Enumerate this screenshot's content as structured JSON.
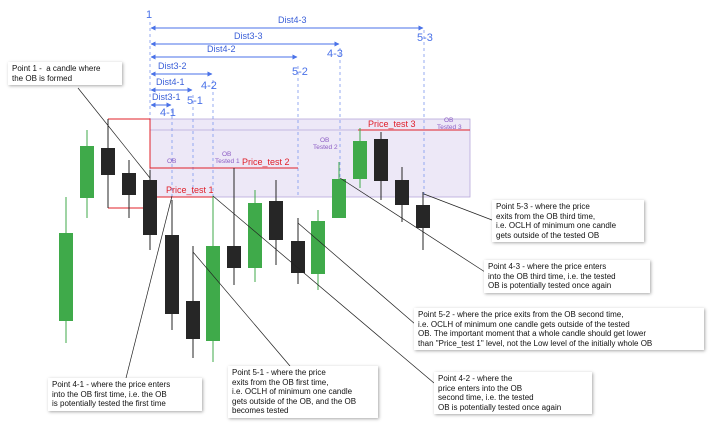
{
  "colors": {
    "bull": "#3faa4a",
    "bear": "#262626",
    "blue": "#4a72e8",
    "red": "#e0202a",
    "purple": "#8c5cc4",
    "ob_fill": "#ede8f7",
    "ob_stroke": "#b6a7da"
  },
  "markers": {
    "m1": "1",
    "m4_1": "4-1",
    "m5_1": "5-1",
    "m4_2": "4-2",
    "m5_2": "5-2",
    "m4_3": "4-3",
    "m5_3": "5-3"
  },
  "dist": {
    "d4_3": "Dist4-3",
    "d3_3": "Dist3-3",
    "d4_2": "Dist4-2",
    "d3_2": "Dist3-2",
    "d4_1": "Dist4-1",
    "d3_1": "Dist3-1"
  },
  "levels": {
    "pt1": "Price_test 1",
    "pt2": "Price_test 2",
    "pt3": "Price_test 3"
  },
  "ob": {
    "ob": "OB",
    "t1a": "OB",
    "t1b": "Tested 1",
    "t2a": "OB",
    "t2b": "Tested 2",
    "t3a": "OB",
    "t3b": "Tested 3"
  },
  "notes": {
    "p1": "Point 1 -  a candle where\nthe OB is formed",
    "p4_1": "Point 4-1 - where the price enters\ninto the OB first time, i.e. the OB\nis potentially tested the first time",
    "p5_1": "Point 5-1 - where the price\nexits from the OB first time,\ni.e. OCLH of minimum one candle\ngets outside of the OB, and the OB\nbecomes tested",
    "p4_2": "Point 4-2 - where the\nprice enters into the OB\nsecond time, i.e. the tested\nOB is potentially tested once again",
    "p5_2": "Point 5-2 - where the price exits from the OB second time,\ni.e. OCLH of minimum one candle gets outside of the tested\nOB. The important moment that a whole candle should get lower\nthan \"Price_test 1\" level, not the Low level of the initially whole OB",
    "p4_3": "Point 4-3 - where the price enters\ninto the OB third time, i.e. the tested\nOB is potentially tested once again",
    "p5_3": "Point 5-3 - where the price\nexits from the OB third time,\ni.e. OCLH of minimum one candle\ngets outside of the tested OB"
  }
}
